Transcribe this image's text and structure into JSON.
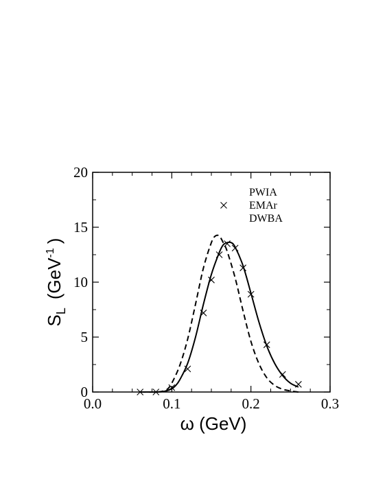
{
  "chart_data": {
    "type": "line",
    "xlabel": "ω   (GeV)",
    "ylabel_main": "S",
    "ylabel_sub": "L",
    "ylabel_unit_open": "(GeV",
    "ylabel_unit_sup": "-1",
    "ylabel_unit_close": ")",
    "xlim": [
      0.0,
      0.3
    ],
    "ylim": [
      0,
      20
    ],
    "x_ticks": [
      "0.0",
      "0.1",
      "0.2",
      "0.3"
    ],
    "x_tick_values": [
      0.0,
      0.1,
      0.2,
      0.3
    ],
    "y_ticks": [
      "0",
      "5",
      "10",
      "15",
      "20"
    ],
    "y_tick_values": [
      0,
      5,
      10,
      15,
      20
    ],
    "grid": false,
    "legend_position": "top-right",
    "series": [
      {
        "name": "PWIA",
        "style": "dashed",
        "x": [
          0.06,
          0.08,
          0.09,
          0.095,
          0.1,
          0.11,
          0.12,
          0.13,
          0.14,
          0.15,
          0.155,
          0.16,
          0.165,
          0.17,
          0.18,
          0.19,
          0.2,
          0.21,
          0.22,
          0.23,
          0.24,
          0.25,
          0.26
        ],
        "y": [
          0.0,
          0.0,
          0.1,
          0.3,
          0.8,
          2.4,
          4.8,
          8.0,
          11.3,
          13.6,
          14.2,
          14.2,
          13.6,
          12.8,
          10.4,
          7.4,
          4.6,
          2.6,
          1.3,
          0.6,
          0.25,
          0.1,
          0.0
        ]
      },
      {
        "name": "EMAr",
        "style": "markers",
        "marker": "x",
        "x": [
          0.06,
          0.08,
          0.1,
          0.12,
          0.14,
          0.15,
          0.16,
          0.17,
          0.18,
          0.19,
          0.2,
          0.22,
          0.24,
          0.26
        ],
        "y": [
          0.0,
          0.0,
          0.4,
          2.1,
          7.2,
          10.2,
          12.5,
          13.5,
          13.1,
          11.3,
          8.9,
          4.3,
          1.6,
          0.7
        ]
      },
      {
        "name": "DWBA",
        "style": "solid",
        "x": [
          0.06,
          0.08,
          0.09,
          0.1,
          0.105,
          0.11,
          0.12,
          0.13,
          0.14,
          0.15,
          0.16,
          0.165,
          0.17,
          0.175,
          0.18,
          0.19,
          0.2,
          0.21,
          0.22,
          0.23,
          0.24,
          0.25,
          0.26
        ],
        "y": [
          0.0,
          0.0,
          0.05,
          0.3,
          0.6,
          1.1,
          2.6,
          5.0,
          8.0,
          10.7,
          12.7,
          13.4,
          13.6,
          13.6,
          13.2,
          11.5,
          9.0,
          6.4,
          4.2,
          2.6,
          1.5,
          0.8,
          0.45
        ]
      }
    ]
  }
}
